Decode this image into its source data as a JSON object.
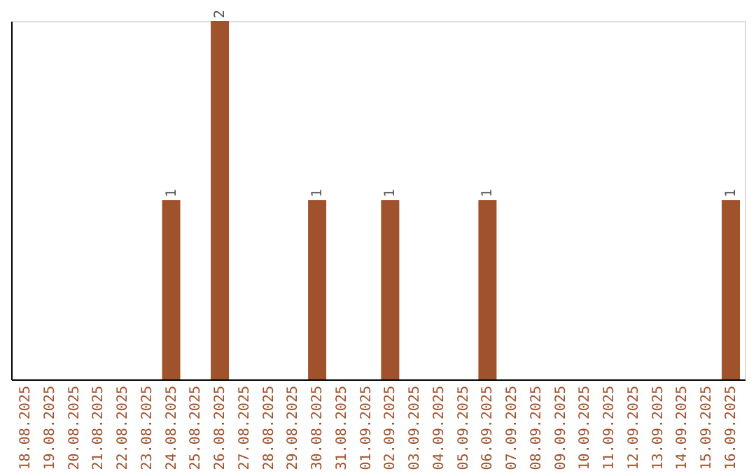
{
  "chart_data": {
    "type": "bar",
    "categories": [
      "18.08.2025",
      "19.08.2025",
      "20.08.2025",
      "21.08.2025",
      "22.08.2025",
      "23.08.2025",
      "24.08.2025",
      "25.08.2025",
      "26.08.2025",
      "27.08.2025",
      "28.08.2025",
      "29.08.2025",
      "30.08.2025",
      "31.08.2025",
      "01.09.2025",
      "02.09.2025",
      "03.09.2025",
      "04.09.2025",
      "05.09.2025",
      "06.09.2025",
      "07.09.2025",
      "08.09.2025",
      "09.09.2025",
      "10.09.2025",
      "11.09.2025",
      "12.09.2025",
      "13.09.2025",
      "14.09.2025",
      "15.09.2025",
      "16.09.2025"
    ],
    "values": [
      0,
      0,
      0,
      0,
      0,
      0,
      1,
      0,
      2,
      0,
      0,
      0,
      1,
      0,
      0,
      1,
      0,
      0,
      0,
      1,
      0,
      0,
      0,
      0,
      0,
      0,
      0,
      0,
      0,
      1
    ],
    "value_labels": [
      null,
      null,
      null,
      null,
      null,
      null,
      "1",
      null,
      "2",
      null,
      null,
      null,
      "1",
      null,
      null,
      "1",
      null,
      null,
      null,
      "1",
      null,
      null,
      null,
      null,
      null,
      null,
      null,
      null,
      null,
      "1"
    ],
    "color": "#a0522d",
    "grid": false
  }
}
